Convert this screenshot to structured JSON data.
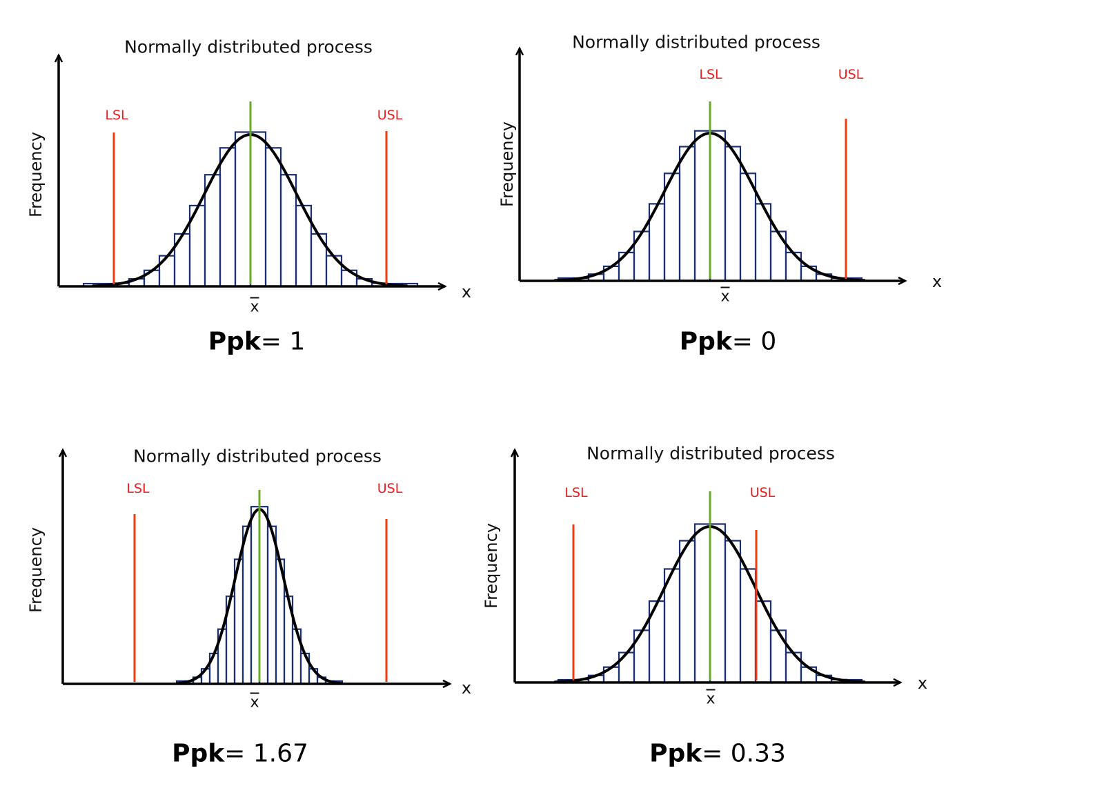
{
  "colors": {
    "spec_limit": "#f03c10",
    "mean_line": "#6aaa2a",
    "histogram": "#1a2f72",
    "curve": "#000000"
  },
  "panels": [
    {
      "title": "Normally distributed process",
      "y_label": "Frequency",
      "x_label": "x",
      "mean_label": "x",
      "lsl_label": "LSL",
      "usl_label": "USL",
      "ppk_label": "Ppk",
      "ppk_value": "= 1"
    },
    {
      "title": "Normally distributed process",
      "y_label": "Frequency",
      "x_label": "x",
      "mean_label": "x",
      "lsl_label": "LSL",
      "usl_label": "USL",
      "ppk_label": "Ppk",
      "ppk_value": "= 0"
    },
    {
      "title": "Normally distributed process",
      "y_label": "Frequency",
      "x_label": "x",
      "mean_label": "x",
      "lsl_label": "LSL",
      "usl_label": "USL",
      "ppk_label": "Ppk",
      "ppk_value": "= 1.67"
    },
    {
      "title": "Normally distributed process",
      "y_label": "Frequency",
      "x_label": "x",
      "mean_label": "x",
      "lsl_label": "LSL",
      "usl_label": "USL",
      "ppk_label": "Ppk",
      "ppk_value": "= 0.33"
    }
  ]
}
